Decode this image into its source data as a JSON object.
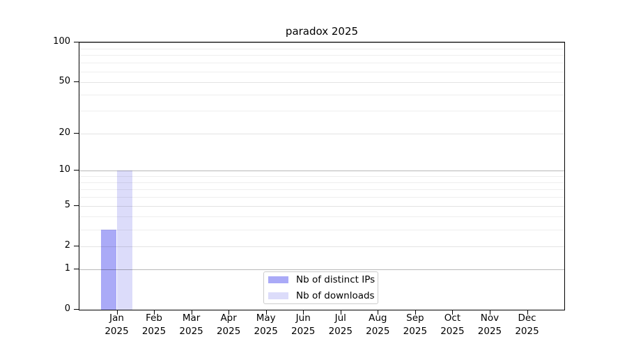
{
  "title": "paradox 2025",
  "chart_data": {
    "type": "bar",
    "title": "paradox 2025",
    "categories": [
      "Jan",
      "Feb",
      "Mar",
      "Apr",
      "May",
      "Jun",
      "Jul",
      "Aug",
      "Sep",
      "Oct",
      "Nov",
      "Dec"
    ],
    "x_tick_second_line": "2025",
    "series": [
      {
        "name": "Nb of distinct IPs",
        "color": "#aaaaf7",
        "values": [
          3,
          0,
          0,
          0,
          0,
          0,
          0,
          0,
          0,
          0,
          0,
          0
        ]
      },
      {
        "name": "Nb of downloads",
        "color": "#dcdcfa",
        "values": [
          10,
          0,
          0,
          0,
          0,
          0,
          0,
          0,
          0,
          0,
          0,
          0
        ]
      }
    ],
    "xlabel": "",
    "ylabel": "",
    "yscale": "log1p",
    "ylim": [
      0,
      100
    ],
    "yticks": [
      0,
      1,
      2,
      5,
      10,
      20,
      50,
      100
    ],
    "minor_gridlines": [
      3,
      4,
      6,
      7,
      8,
      9,
      30,
      40,
      60,
      70,
      80,
      90
    ],
    "grid": true,
    "legend_position": "bottom-center"
  }
}
